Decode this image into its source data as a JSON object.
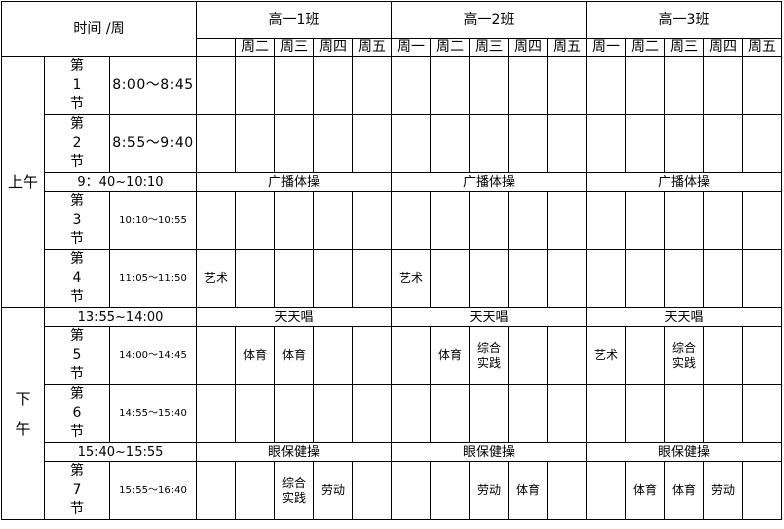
{
  "header": {
    "corner": "时间 /周",
    "classes": [
      "高一1班",
      "高一2班",
      "高一3班"
    ],
    "days": [
      [
        "",
        "周二",
        "周三",
        "周四",
        "周五"
      ],
      [
        "周一",
        "周二",
        "周三",
        "周四",
        "周五"
      ],
      [
        "周一",
        "周二",
        "周三",
        "周四",
        "周五"
      ]
    ]
  },
  "halves": {
    "morning": "上午",
    "afternoon": "下午"
  },
  "rows": [
    {
      "type": "period",
      "label": "第\n1\n节",
      "time": "8:00～8:45",
      "big": true,
      "cells": [
        "",
        "",
        "",
        "",
        "",
        "",
        "",
        "",
        "",
        "",
        "",
        "",
        "",
        "",
        ""
      ]
    },
    {
      "type": "period",
      "label": "第\n2\n节",
      "time": "8:55～9:40",
      "big": true,
      "cells": [
        "",
        "",
        "",
        "",
        "",
        "",
        "",
        "",
        "",
        "",
        "",
        "",
        "",
        "",
        ""
      ]
    },
    {
      "type": "break",
      "time": "9：40~10:10",
      "activity": "广播体操"
    },
    {
      "type": "period",
      "label": "第\n3\n节",
      "time": "10:10～10:55",
      "big": false,
      "cells": [
        "",
        "",
        "",
        "",
        "",
        "",
        "",
        "",
        "",
        "",
        "",
        "",
        "",
        "",
        ""
      ]
    },
    {
      "type": "period",
      "label": "第\n4\n节",
      "time": "11:05～11:50",
      "big": false,
      "cells": [
        "艺术",
        "",
        "",
        "",
        "",
        "艺术",
        "",
        "",
        "",
        "",
        "",
        "",
        "",
        "",
        ""
      ]
    },
    {
      "type": "break",
      "time": "13:55~14:00",
      "activity": "天天唱"
    },
    {
      "type": "period",
      "label": "第\n5\n节",
      "time": "14:00～14:45",
      "big": false,
      "cells": [
        "",
        "体育",
        "体育",
        "",
        "",
        "",
        "体育",
        "综合\n实践",
        "",
        "",
        "艺术",
        "",
        "综合\n实践",
        "",
        ""
      ]
    },
    {
      "type": "period",
      "label": "第\n6\n节",
      "time": "14:55～15:40",
      "big": false,
      "cells": [
        "",
        "",
        "",
        "",
        "",
        "",
        "",
        "",
        "",
        "",
        "",
        "",
        "",
        "",
        ""
      ]
    },
    {
      "type": "break",
      "time": "15:40~15:55",
      "activity": "眼保健操"
    },
    {
      "type": "period",
      "label": "第\n7\n节",
      "time": "15:55～16:40",
      "big": false,
      "cells": [
        "",
        "",
        "综合\n实践",
        "劳动",
        "",
        "",
        "",
        "劳动",
        "体育",
        "",
        "",
        "体育",
        "体育",
        "劳动",
        ""
      ]
    }
  ]
}
